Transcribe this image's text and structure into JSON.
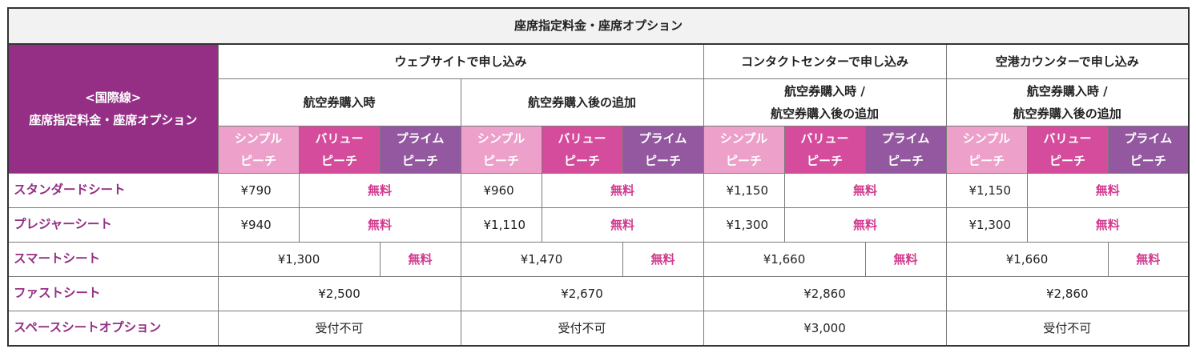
{
  "table_title": "座席指定料金・座席オプション",
  "corner": {
    "line1": "<国際線>",
    "line2": "座席指定料金・座席オプション"
  },
  "channels": {
    "web": "ウェブサイトで申し込み",
    "contact": "コンタクトセンターで申し込み",
    "airport": "空港カウンターで申し込み"
  },
  "timing": {
    "at_purchase": "航空券購入時",
    "after_purchase": "航空券購入後の追加",
    "combined_line1": "航空券購入時 /",
    "combined_line2": "航空券購入後の追加"
  },
  "plans": {
    "simple_l1": "シンプル",
    "simple_l2": "ピーチ",
    "value_l1": "バリュー",
    "value_l2": "ピーチ",
    "prime_l1": "プライム",
    "prime_l2": "ピーチ"
  },
  "colors": {
    "purple": "#942f85",
    "simple": "#eda0c9",
    "value": "#d44c9b",
    "prime": "#93589f",
    "free_text": "#d13c8f"
  },
  "rows": {
    "standard": {
      "label": "スタンダードシート",
      "web_at": "¥790",
      "web_after": "¥960",
      "contact": "¥1,150",
      "airport": "¥1,150"
    },
    "pleasure": {
      "label": "プレジャーシート",
      "web_at": "¥940",
      "web_after": "¥1,110",
      "contact": "¥1,300",
      "airport": "¥1,300"
    },
    "smart": {
      "label": "スマートシート",
      "web_at": "¥1,300",
      "web_after": "¥1,470",
      "contact": "¥1,660",
      "airport": "¥1,660"
    },
    "fast": {
      "label": "ファストシート",
      "web_at": "¥2,500",
      "web_after": "¥2,670",
      "contact": "¥2,860",
      "airport": "¥2,860"
    },
    "space": {
      "label": "スペースシートオプション",
      "web_at": "受付不可",
      "web_after": "受付不可",
      "contact": "¥3,000",
      "airport": "受付不可"
    }
  },
  "free_label": "無料"
}
